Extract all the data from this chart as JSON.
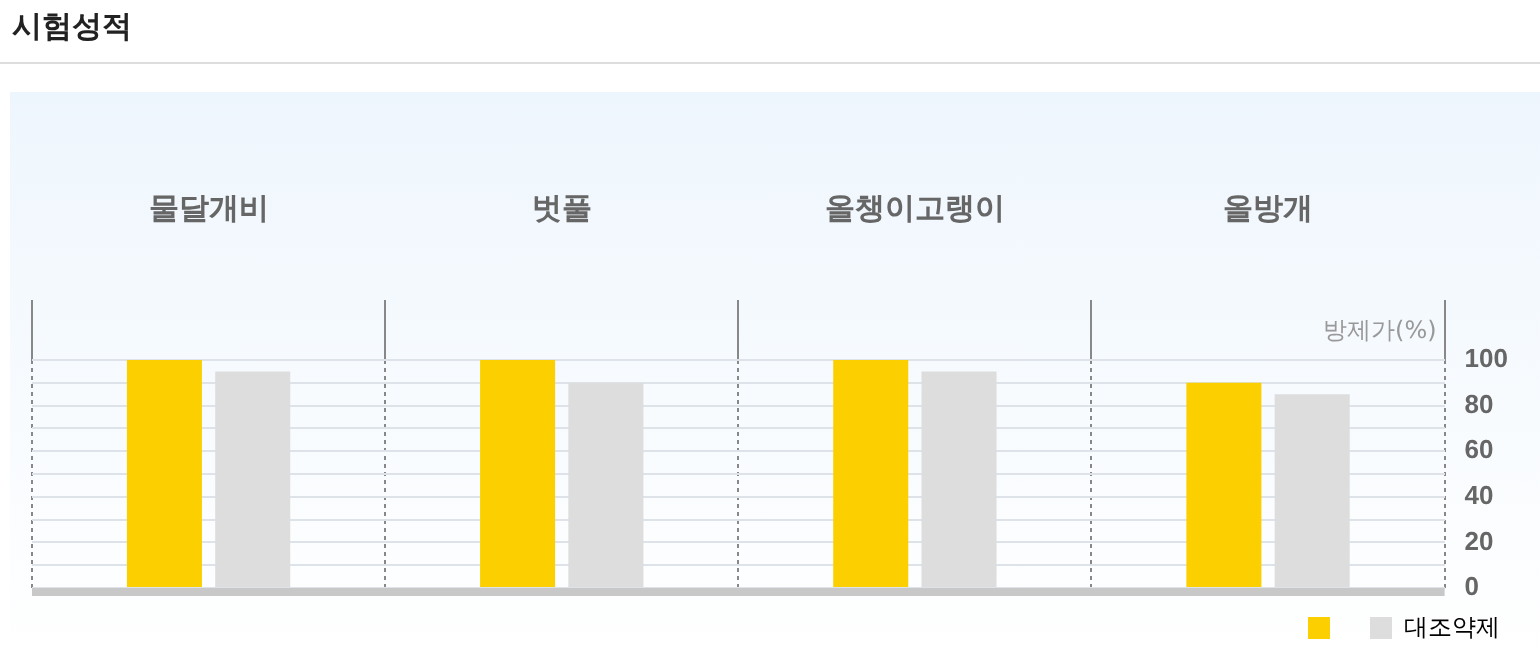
{
  "chart_data": {
    "type": "bar",
    "title": "시험성적",
    "ylabel": "방제가(%)",
    "categories": [
      "물달개비",
      "벗풀",
      "올챙이고랭이",
      "올방개"
    ],
    "series": [
      {
        "color": "#fcd000",
        "values": [
          100,
          100,
          100,
          90
        ]
      },
      {
        "name": "대조약제",
        "color": "#dcdddc",
        "values": [
          95,
          90,
          95,
          85
        ]
      }
    ],
    "ylim": [
      0,
      100
    ],
    "yticks": [
      0,
      {
        "value": 10,
        "label": null
      },
      20,
      {
        "value": 30,
        "label": null
      },
      40,
      {
        "value": 50,
        "label": null
      },
      60,
      {
        "value": 70,
        "label": null
      },
      80,
      {
        "value": 90,
        "label": null
      },
      100
    ],
    "grid": true,
    "legend": "bottom right"
  }
}
